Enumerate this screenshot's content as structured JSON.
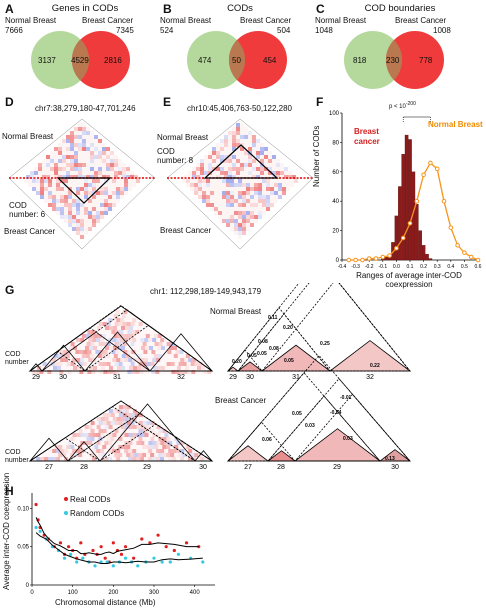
{
  "panels": {
    "A": "A",
    "B": "B",
    "C": "C",
    "D": "D",
    "E": "E",
    "F": "F",
    "G": "G",
    "H": "H"
  },
  "venn": [
    {
      "title": "Genes in CODs",
      "left_label": "Normal Breast",
      "right_label": "Breast Cancer",
      "left_total": "7666",
      "right_total": "7345",
      "left_only": "3137",
      "overlap": "4529",
      "right_only": "2816"
    },
    {
      "title": "CODs",
      "left_label": "Normal Breast",
      "right_label": "Breast Cancer",
      "left_total": "524",
      "right_total": "504",
      "left_only": "474",
      "overlap": "50",
      "right_only": "454"
    },
    {
      "title": "COD boundaries",
      "left_label": "Normal Breast",
      "right_label": "Breast Cancer",
      "left_total": "1048",
      "right_total": "1008",
      "left_only": "818",
      "overlap": "230",
      "right_only": "778"
    }
  ],
  "panel_d": {
    "coord": "chr7:38,279,180-47,701,246",
    "top_label": "Normal Breast",
    "bottom_label": "Breast Cancer",
    "cod_label": "COD",
    "cod_number": "number: 6"
  },
  "panel_e": {
    "coord": "chr10:45,406,763-50,122,280",
    "top_label": "Normal Breast",
    "bottom_label": "Breast Cancer",
    "cod_label": "COD",
    "cod_number": "number: 8"
  },
  "panel_g": {
    "coord": "chr1: 112,298,189-149,943,179",
    "top_title": "Normal Breast",
    "bottom_title": "Breast Cancer",
    "cod_label": "COD",
    "cod_number_label": "number",
    "top_cod_numbers": [
      "29",
      "30",
      "31",
      "32"
    ],
    "bottom_cod_numbers": [
      "27",
      "28",
      "29",
      "30"
    ],
    "top_right_cod_numbers": [
      "29",
      "30",
      "31",
      "32"
    ],
    "bottom_right_cod_numbers": [
      "27",
      "28",
      "29",
      "30"
    ],
    "top_values": [
      "0.11",
      "0.20",
      "0.25",
      "0.08",
      "0.08",
      "0.05",
      "0.05",
      "0.22",
      "0.20",
      "0.05"
    ],
    "bottom_values": [
      "-0.01",
      "-0.04",
      "0.05",
      "0.03",
      "0.06",
      "0.03",
      "0.13"
    ]
  },
  "colors": {
    "normal_green": "#b5d99c",
    "cancer_red": "#ef3b3b",
    "overlap": "#b9784f",
    "hist_normal": "#f7941d",
    "hist_cancer": "#8b1a1a",
    "real_cod": "#e02020",
    "random_cod": "#33c9e0"
  },
  "chart_data": [
    {
      "type": "bar",
      "panel": "F",
      "xlabel": "Ranges of average inter-COD coexpression",
      "ylabel": "Number of CODs",
      "xlim": [
        -0.4,
        0.6
      ],
      "ylim": [
        0,
        100
      ],
      "x_ticks": [
        "-0.4",
        "-0.3",
        "-0.2",
        "-0.1",
        "0.0",
        "0.1",
        "0.2",
        "0.3",
        "0.4",
        "0.5",
        "0.6"
      ],
      "y_ticks": [
        "0",
        "20",
        "40",
        "60",
        "80",
        "100"
      ],
      "annotation": "p < 10",
      "annotation_exp": "-200",
      "series": [
        {
          "name": "Breast cancer",
          "style": "bars",
          "x": [
            -0.1,
            -0.075,
            -0.05,
            -0.025,
            0.0,
            0.025,
            0.05,
            0.075,
            0.1,
            0.125,
            0.15,
            0.175,
            0.2,
            0.225,
            0.25
          ],
          "values": [
            1,
            2,
            4,
            12,
            30,
            50,
            72,
            85,
            82,
            60,
            38,
            20,
            10,
            4,
            1
          ]
        },
        {
          "name": "Normal Breast",
          "style": "line",
          "x": [
            -0.35,
            -0.3,
            -0.25,
            -0.2,
            -0.15,
            -0.1,
            -0.05,
            0.0,
            0.05,
            0.1,
            0.15,
            0.2,
            0.25,
            0.3,
            0.35,
            0.4,
            0.45,
            0.5,
            0.55,
            0.6
          ],
          "values": [
            0,
            0,
            0,
            1,
            1,
            2,
            3,
            8,
            15,
            25,
            40,
            58,
            66,
            62,
            40,
            22,
            10,
            5,
            2,
            0
          ]
        }
      ]
    },
    {
      "type": "scatter",
      "panel": "H",
      "xlabel": "Chromosomal distance (Mb)",
      "ylabel": "Average inter-COD coexpression",
      "xlim": [
        0,
        450
      ],
      "ylim": [
        0,
        0.12
      ],
      "x_ticks": [
        "0",
        "100",
        "200",
        "300",
        "400"
      ],
      "y_ticks": [
        "0",
        "0.05",
        "0.10"
      ],
      "series": [
        {
          "name": "Real CODs",
          "x": [
            10,
            15,
            20,
            30,
            40,
            55,
            70,
            80,
            90,
            100,
            110,
            120,
            130,
            140,
            150,
            160,
            170,
            180,
            190,
            200,
            210,
            220,
            230,
            250,
            270,
            290,
            310,
            330,
            350,
            380,
            410
          ],
          "values": [
            0.105,
            0.085,
            0.075,
            0.065,
            0.06,
            0.05,
            0.055,
            0.04,
            0.05,
            0.045,
            0.035,
            0.055,
            0.04,
            0.03,
            0.045,
            0.04,
            0.05,
            0.035,
            0.03,
            0.055,
            0.045,
            0.04,
            0.05,
            0.035,
            0.06,
            0.055,
            0.065,
            0.05,
            0.045,
            0.055,
            0.05
          ]
        },
        {
          "name": "Random CODs",
          "x": [
            10,
            20,
            35,
            50,
            65,
            80,
            95,
            110,
            125,
            140,
            155,
            170,
            185,
            200,
            215,
            230,
            245,
            260,
            280,
            300,
            320,
            340,
            360,
            390,
            420
          ],
          "values": [
            0.075,
            0.07,
            0.06,
            0.05,
            0.045,
            0.035,
            0.04,
            0.03,
            0.035,
            0.03,
            0.025,
            0.03,
            0.03,
            0.025,
            0.03,
            0.035,
            0.03,
            0.025,
            0.03,
            0.035,
            0.03,
            0.03,
            0.04,
            0.035,
            0.03
          ]
        }
      ]
    }
  ]
}
